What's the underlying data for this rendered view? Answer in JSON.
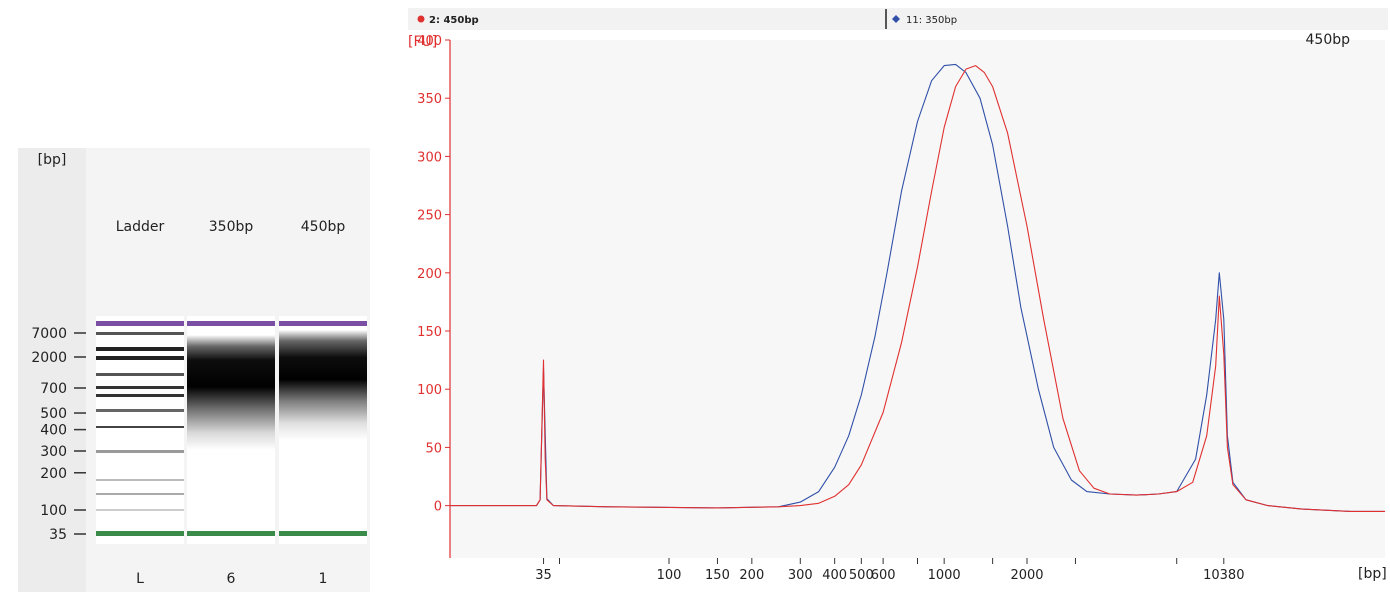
{
  "gel_image": {
    "unit_label": "[bp]",
    "size_markers": [
      "7000",
      "2000",
      "700",
      "500",
      "400",
      "300",
      "200",
      "100",
      "35"
    ],
    "size_marker_bp": [
      7000,
      2000,
      700,
      500,
      400,
      300,
      200,
      100,
      35
    ],
    "lanes": [
      {
        "header": "Ladder",
        "footer": "L"
      },
      {
        "header": "350bp",
        "footer": "6"
      },
      {
        "header": "450bp",
        "footer": "1"
      }
    ],
    "upper_marker_color": "#7a4fa3",
    "lower_marker_color": "#3a8a4a"
  },
  "chart_data": {
    "type": "line",
    "legend": [
      {
        "label": "2: 450bp",
        "color": "#e03030"
      },
      {
        "label": "11: 350bp",
        "color": "#3050a8"
      }
    ],
    "sample_label": "450bp",
    "ylabel": "[FU]",
    "xlabel": "[bp]",
    "ylim": [
      -45,
      400
    ],
    "x_scale": "log",
    "xlim": [
      16,
      40000
    ],
    "y_ticks": [
      "0",
      "50",
      "100",
      "150",
      "200",
      "250",
      "300",
      "350",
      "400"
    ],
    "x_tick_labels": [
      "35",
      "100",
      "150",
      "200",
      "300",
      "400",
      "500",
      "600",
      "1000",
      "2000",
      "10380"
    ],
    "x_tick_values": [
      35,
      100,
      150,
      200,
      300,
      400,
      500,
      600,
      1000,
      2000,
      10380
    ],
    "x_minor_ticks": [
      40,
      800,
      1500,
      3000,
      7000
    ],
    "series": [
      {
        "name": "11: 350bp",
        "color": "#3050a8",
        "x": [
          16,
          33,
          34,
          35,
          36,
          38,
          60,
          150,
          250,
          300,
          350,
          400,
          450,
          500,
          560,
          620,
          700,
          800,
          900,
          1000,
          1100,
          1200,
          1350,
          1500,
          1700,
          1900,
          2200,
          2500,
          2900,
          3300,
          4000,
          5000,
          6000,
          7000,
          8200,
          9000,
          9700,
          10000,
          10380,
          10700,
          11200,
          12500,
          15000,
          20000,
          30000,
          40000
        ],
        "y": [
          0,
          0,
          5,
          118,
          6,
          0,
          -1,
          -2,
          -1,
          3,
          12,
          33,
          60,
          95,
          145,
          200,
          270,
          330,
          365,
          378,
          379,
          372,
          350,
          310,
          240,
          170,
          100,
          50,
          22,
          12,
          10,
          9,
          10,
          12,
          40,
          95,
          160,
          200,
          160,
          60,
          20,
          5,
          0,
          -3,
          -5,
          -5
        ]
      },
      {
        "name": "2: 450bp",
        "color": "#e03030",
        "x": [
          16,
          33,
          34,
          35,
          35.5,
          36,
          38,
          60,
          150,
          250,
          300,
          350,
          400,
          450,
          500,
          600,
          700,
          800,
          900,
          1000,
          1100,
          1200,
          1300,
          1400,
          1500,
          1700,
          2000,
          2300,
          2700,
          3100,
          3500,
          4000,
          5000,
          6000,
          7000,
          8000,
          9000,
          9700,
          10000,
          10380,
          10700,
          11200,
          12500,
          15000,
          20000,
          30000,
          40000
        ],
        "y": [
          0,
          0,
          5,
          125,
          40,
          5,
          0,
          -1,
          -2,
          -1,
          0,
          2,
          8,
          18,
          35,
          80,
          140,
          205,
          270,
          325,
          360,
          375,
          378,
          372,
          360,
          320,
          240,
          160,
          75,
          30,
          15,
          10,
          9,
          10,
          12,
          20,
          60,
          120,
          180,
          130,
          50,
          18,
          5,
          0,
          -3,
          -5,
          -5
        ]
      }
    ]
  }
}
